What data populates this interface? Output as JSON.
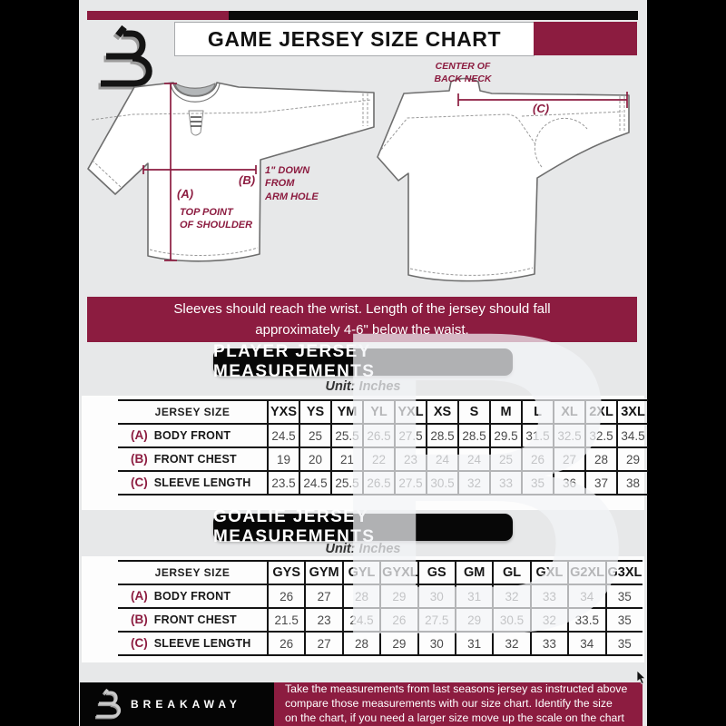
{
  "colors": {
    "accent": "#8c1c40",
    "page_bg": "#e7e8e9",
    "banner_black": "#070707"
  },
  "header": {
    "title": "GAME JERSEY SIZE CHART"
  },
  "diagram": {
    "front": {
      "a_label": "(A)",
      "a_note": "TOP POINT\nOF SHOULDER",
      "b_label": "(B)",
      "b_note": "1\" DOWN\nFROM\nARM HOLE"
    },
    "back": {
      "c_label": "(C)",
      "c_note": "CENTER OF\nBACK NECK"
    }
  },
  "notice": {
    "text": "Sleeves should reach the wrist. Length of the jersey should fall\napproximately 4-6\" below the waist."
  },
  "player_section": {
    "title": "PLAYER JERSEY MEASUREMENTS",
    "unit": "Unit: Inches",
    "table": {
      "corner": "JERSEY SIZE",
      "columns": [
        "YXS",
        "YS",
        "YM",
        "YL",
        "YXL",
        "XS",
        "S",
        "M",
        "L",
        "XL",
        "2XL",
        "3XL"
      ],
      "rows": [
        {
          "key": "(A)",
          "label": "BODY FRONT",
          "values": [
            "24.5",
            "25",
            "25.5",
            "26.5",
            "27.5",
            "28.5",
            "28.5",
            "29.5",
            "31.5",
            "32.5",
            "32.5",
            "34.5"
          ]
        },
        {
          "key": "(B)",
          "label": "FRONT CHEST",
          "values": [
            "19",
            "20",
            "21",
            "22",
            "23",
            "24",
            "24",
            "25",
            "26",
            "27",
            "28",
            "29"
          ]
        },
        {
          "key": "(C)",
          "label": "SLEEVE LENGTH",
          "values": [
            "23.5",
            "24.5",
            "25.5",
            "26.5",
            "27.5",
            "30.5",
            "32",
            "33",
            "35",
            "36",
            "37",
            "38"
          ]
        }
      ]
    }
  },
  "goalie_section": {
    "title": "GOALIE JERSEY MEASUREMENTS",
    "unit": "Unit: Inches",
    "table": {
      "corner": "JERSEY SIZE",
      "columns": [
        "GYS",
        "GYM",
        "GYL",
        "GYXL",
        "GS",
        "GM",
        "GL",
        "GXL",
        "G2XL",
        "G3XL"
      ],
      "rows": [
        {
          "key": "(A)",
          "label": "BODY FRONT",
          "values": [
            "26",
            "27",
            "28",
            "29",
            "30",
            "31",
            "32",
            "33",
            "34",
            "35"
          ]
        },
        {
          "key": "(B)",
          "label": "FRONT CHEST",
          "values": [
            "21.5",
            "23",
            "24.5",
            "26",
            "27.5",
            "29",
            "30.5",
            "32",
            "33.5",
            "35"
          ]
        },
        {
          "key": "(C)",
          "label": "SLEEVE LENGTH",
          "values": [
            "26",
            "27",
            "28",
            "29",
            "30",
            "31",
            "32",
            "33",
            "34",
            "35"
          ]
        }
      ]
    }
  },
  "footer": {
    "brand": "BREAKAWAY",
    "note": "Take the measurements from last seasons jersey as instructed above\ncompare those measurements  with our size chart. Identify the size\non the chart, if you need a larger size move up the scale on the chart"
  },
  "watermark": {
    "letter": "B"
  }
}
